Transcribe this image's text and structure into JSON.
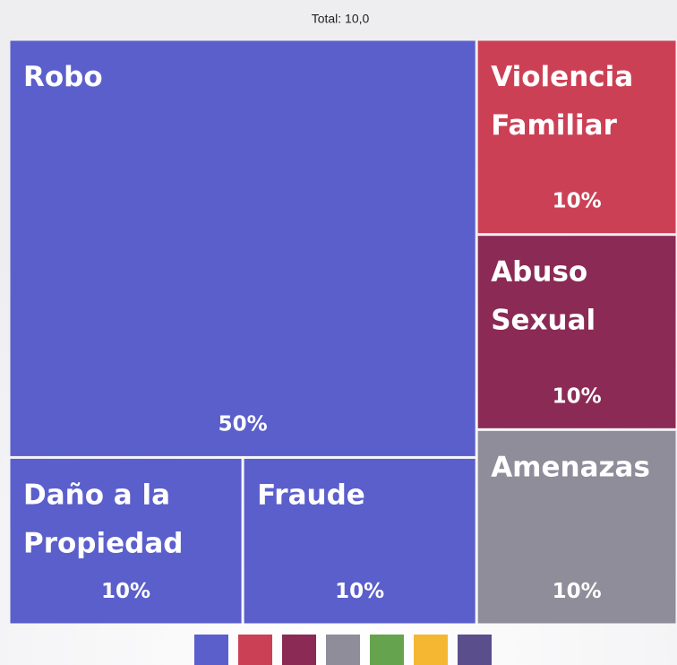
{
  "chart_data": {
    "type": "treemap",
    "title": "Total: 10,0",
    "categories": [
      "Robo",
      "Daño a la Propiedad",
      "Fraude",
      "Violencia Familiar",
      "Abuso Sexual",
      "Amenazas"
    ],
    "values": [
      50,
      10,
      10,
      10,
      10,
      10
    ],
    "value_labels": [
      "50%",
      "10%",
      "10%",
      "10%",
      "10%",
      "10%"
    ],
    "colors": [
      "#5b5fcb",
      "#5b5fcb",
      "#5b5fcb",
      "#cc4055",
      "#8b2a55",
      "#8e8d99"
    ],
    "legend_colors": [
      "#5b5fcb",
      "#cc4055",
      "#8b2a55",
      "#8e8d99",
      "#66a34f",
      "#f5b731",
      "#5b4e8c"
    ]
  }
}
